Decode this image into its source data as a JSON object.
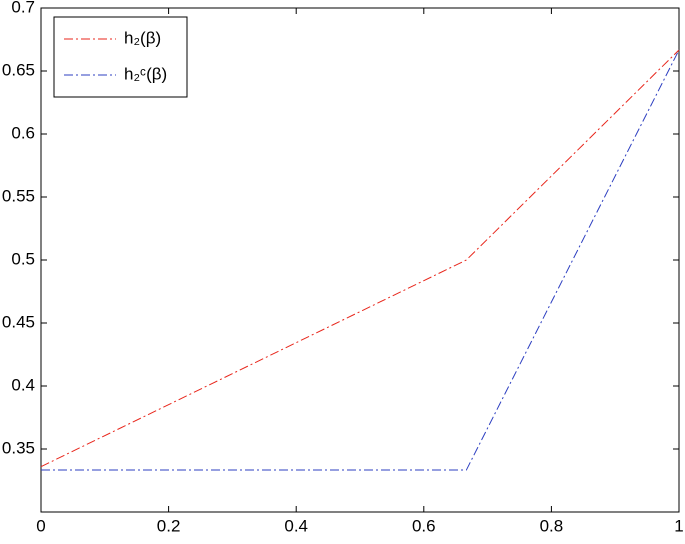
{
  "chart_data": {
    "type": "line",
    "x": [
      0,
      0.6667,
      1
    ],
    "series": [
      {
        "name": "h₂(β)",
        "color": "#e8261b",
        "values": [
          0.336,
          0.5,
          0.6667
        ]
      },
      {
        "name": "h₂ᶜ(β)",
        "color": "#2d3fc1",
        "values": [
          0.3333,
          0.3333,
          0.6667
        ]
      }
    ],
    "xlim": [
      0,
      1
    ],
    "xticks": [
      0,
      0.2,
      0.4,
      0.6,
      0.8,
      1
    ],
    "ylim": [
      0.3,
      0.7
    ],
    "yticks": [
      0.35,
      0.4,
      0.45,
      0.5,
      0.55,
      0.6,
      0.65,
      0.7
    ],
    "grid": false,
    "legend": "top-left"
  }
}
